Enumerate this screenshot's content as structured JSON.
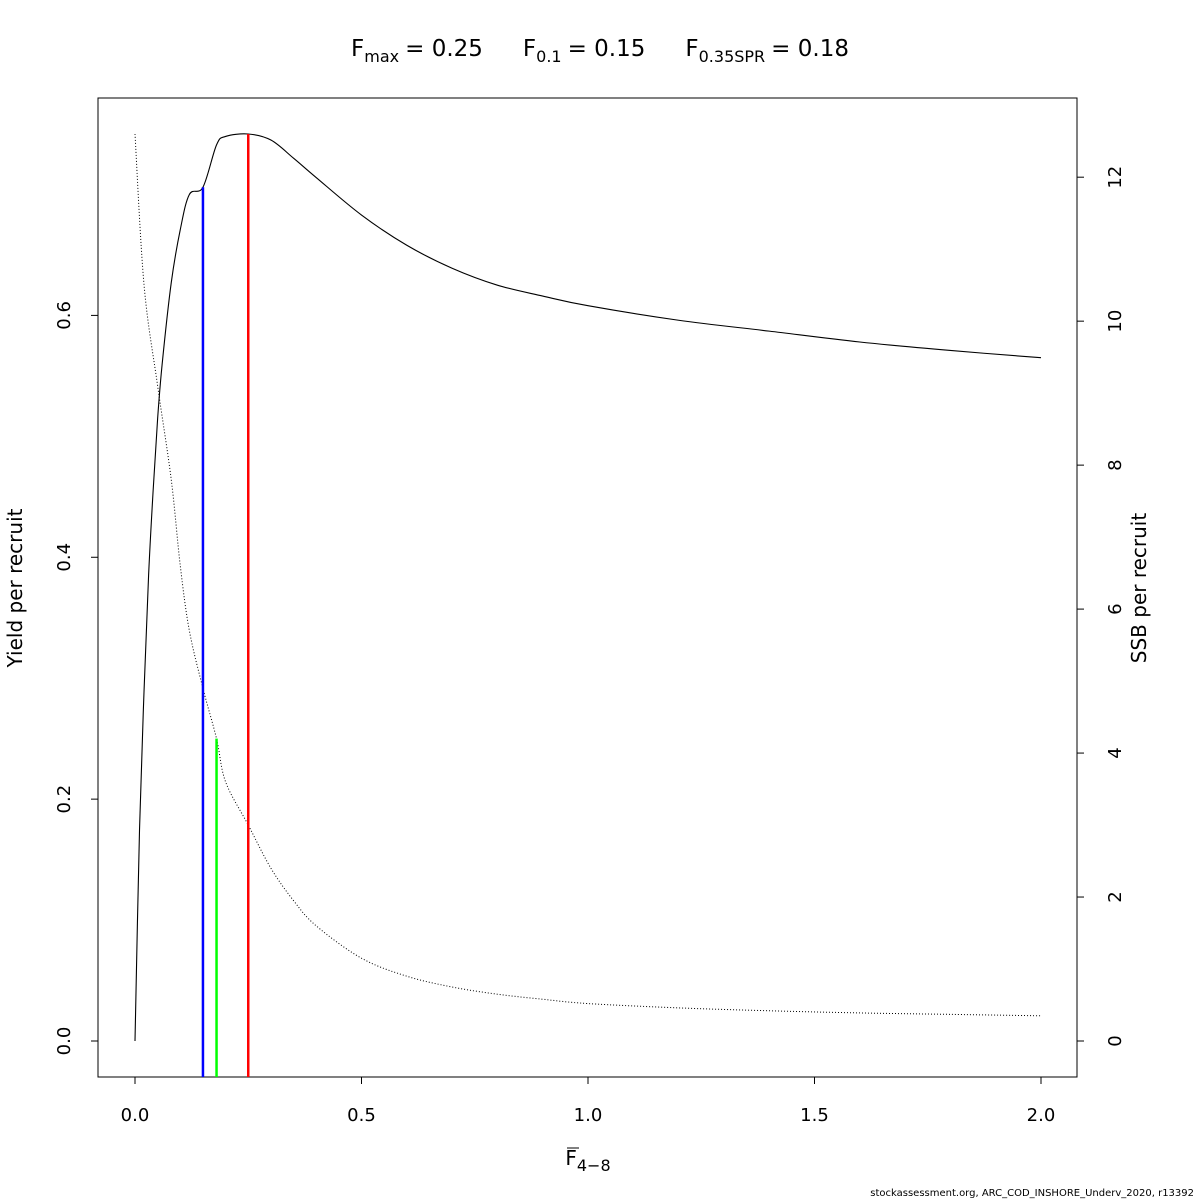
{
  "title": {
    "fmax": {
      "label": "F",
      "sub": "max",
      "value": "= 0.25"
    },
    "f01": {
      "label": "F",
      "sub": "0.1",
      "value": "= 0.15"
    },
    "fspr": {
      "label": "F",
      "sub": "0.35SPR",
      "value": "= 0.18"
    }
  },
  "xlabel": {
    "main": "F",
    "sub": "4−8"
  },
  "ylabel_left": "Yield per recruit",
  "ylabel_right": "SSB per recruit",
  "credit": "stockassessment.org, ARC_COD_INSHORE_Underv_2020, r13392",
  "chart_data": {
    "type": "line",
    "xlim": [
      0,
      2
    ],
    "ylim_left": [
      0,
      0.75
    ],
    "ylim_right": [
      0,
      12.6
    ],
    "x_ticks": [
      "0.0",
      "0.5",
      "1.0",
      "1.5",
      "2.0"
    ],
    "y_left_ticks": [
      "0.0",
      "0.2",
      "0.4",
      "0.6"
    ],
    "y_right_ticks": [
      "0",
      "2",
      "4",
      "6",
      "8",
      "10",
      "12"
    ],
    "grid": false,
    "series": [
      {
        "axis": "left",
        "line_style": "solid",
        "color": "#000000",
        "x": [
          0,
          0.01,
          0.02,
          0.03,
          0.04,
          0.05,
          0.06,
          0.08,
          0.1,
          0.12,
          0.15,
          0.18,
          0.2,
          0.25,
          0.3,
          0.35,
          0.4,
          0.5,
          0.6,
          0.7,
          0.8,
          0.9,
          1.0,
          1.2,
          1.4,
          1.6,
          1.8,
          2.0
        ],
        "y": [
          0.0,
          0.175,
          0.29,
          0.385,
          0.455,
          0.515,
          0.56,
          0.627,
          0.671,
          0.7,
          0.706,
          0.741,
          0.748,
          0.75,
          0.745,
          0.73,
          0.714,
          0.683,
          0.658,
          0.639,
          0.625,
          0.616,
          0.608,
          0.596,
          0.587,
          0.578,
          0.571,
          0.565
        ]
      },
      {
        "axis": "right",
        "line_style": "dotted",
        "color": "#000000",
        "x": [
          0,
          0.02,
          0.05,
          0.08,
          0.1,
          0.12,
          0.15,
          0.18,
          0.2,
          0.25,
          0.3,
          0.35,
          0.4,
          0.5,
          0.6,
          0.7,
          0.8,
          0.9,
          1.0,
          1.2,
          1.4,
          1.6,
          1.8,
          2.0
        ],
        "y": [
          12.6,
          10.5,
          9.1,
          7.8,
          6.6,
          5.7,
          4.9,
          4.2,
          3.6,
          3.0,
          2.4,
          1.95,
          1.6,
          1.15,
          0.9,
          0.75,
          0.65,
          0.58,
          0.52,
          0.46,
          0.42,
          0.39,
          0.37,
          0.35
        ]
      }
    ],
    "reference_lines": [
      {
        "name": "F0.1",
        "x": 0.15,
        "y_left_top": 0.706,
        "color": "#0000ff"
      },
      {
        "name": "F0.35SPR",
        "x": 0.18,
        "y_left_top": 0.25,
        "color": "#00ff00"
      },
      {
        "name": "Fmax",
        "x": 0.25,
        "y_left_top": 0.75,
        "color": "#ff0000"
      }
    ]
  }
}
